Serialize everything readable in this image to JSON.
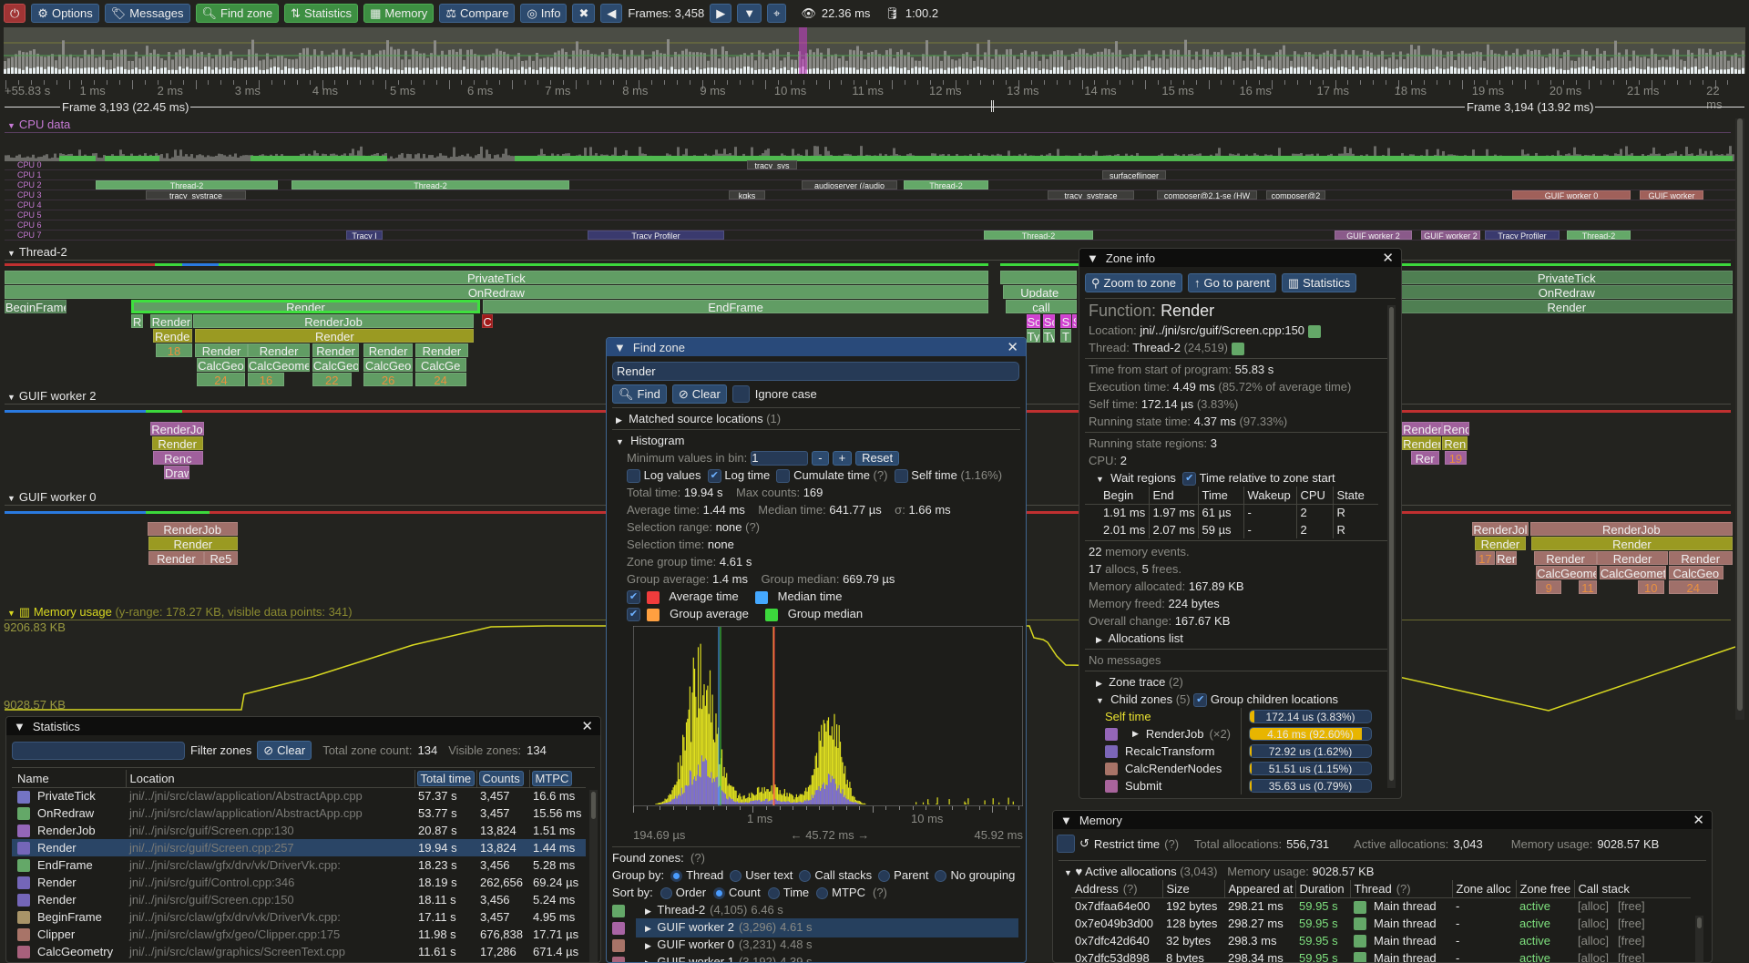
{
  "toolbar": {
    "options": "Options",
    "messages": "Messages",
    "find_zone": "Find zone",
    "statistics": "Statistics",
    "memory": "Memory",
    "compare": "Compare",
    "info": "Info",
    "frames": "Frames: 3,458",
    "frame_time": "22.36 ms",
    "trace_time": "1:00.2"
  },
  "ruler": {
    "start": "+55.83 s",
    "ticks": [
      "1 ms",
      "2 ms",
      "3 ms",
      "4 ms",
      "5 ms",
      "6 ms",
      "7 ms",
      "8 ms",
      "9 ms",
      "10 ms",
      "11 ms",
      "12 ms",
      "13 ms",
      "14 ms",
      "15 ms",
      "16 ms",
      "17 ms",
      "18 ms",
      "19 ms",
      "20 ms",
      "21 ms",
      "22 ms"
    ],
    "frame_a": "Frame 3,193 (22.45 ms)",
    "frame_b": "Frame 3,194 (13.92 ms)"
  },
  "cpu": {
    "title": "CPU data",
    "rows": [
      "CPU 0",
      "CPU 1",
      "CPU 2",
      "CPU 3",
      "CPU 4",
      "CPU 5",
      "CPU 6",
      "CPU 7"
    ],
    "blocks": [
      "Thread-2",
      "Thread-2",
      "Thread-2",
      "tracy_systrace",
      "tracy_systrace",
      "Thread-2",
      "Tracy Profiler",
      "Thread-2",
      "GUIF worker 2",
      "surfaceflinger",
      "composer@2.1-se (HW",
      "composer@2",
      "GUIF worker 0",
      "GUIF worker",
      "audioserver (/audio",
      "tracy_sys",
      "Tracy Profiler",
      "Tracy I",
      "kgks",
      "GUIF worker 2"
    ]
  },
  "threads": {
    "thread2": "Thread-2",
    "worker2": "GUIF worker 2",
    "worker0": "GUIF worker 0",
    "zones": [
      "PrivateTick",
      "OnRedraw",
      "BeginFrame",
      "Render",
      "EndFrame",
      "RenderJob",
      "Render",
      "C",
      "Rende",
      "Render",
      "18",
      "Render",
      "Render",
      "Render",
      "Render",
      "Render",
      "CalcGeo",
      "CalcGeome",
      "CalcGeor",
      "CalcGeo",
      "CalcGe",
      "24",
      "16",
      "22",
      "26",
      "24",
      "Update",
      "call",
      "PrivateTick",
      "OnRedraw",
      "Render",
      "RenderJol",
      "Render",
      "Renc",
      "Draw",
      "RenderJ",
      "Rend",
      "Render",
      "Ren",
      "Rer",
      "19",
      "RenderJob",
      "Render",
      "Render",
      "Re5",
      "RenderJol",
      "RenderJob",
      "Render",
      "Render",
      "17",
      "Rer",
      "Render",
      "Render",
      "Render",
      "CalcGeome",
      "CalcGeomet",
      "CalcGeo",
      "9",
      "11",
      "10",
      "24",
      "R",
      "Sc",
      "Sc",
      "S",
      "S",
      "Ty",
      "Ty",
      "T"
    ]
  },
  "memory_plot": {
    "title": "Memory usage",
    "subtitle": "(y-range: 178.27 KB, visible data points: 341)",
    "max_label": "9206.83 KB",
    "min_label": "9028.57 KB"
  },
  "statistics": {
    "title": "Statistics",
    "filter_placeholder": "",
    "filter_label": "Filter zones",
    "clear": "Clear",
    "total_label": "Total zone count:",
    "total": "134",
    "visible_label": "Visible zones:",
    "visible": "134",
    "columns": [
      "Name",
      "Location",
      "Total time",
      "Counts",
      "MTPC"
    ],
    "rows": [
      {
        "name": "PrivateTick",
        "color": "#7474c4",
        "loc": "jni/../jni/src/claw/application/AbstractApp.cpp",
        "total": "57.37 s",
        "count": "3,457",
        "mtpc": "16.6 ms"
      },
      {
        "name": "OnRedraw",
        "color": "#64a868",
        "loc": "jni/../jni/src/claw/application/AbstractApp.cpp",
        "total": "53.77 s",
        "count": "3,457",
        "mtpc": "15.56 ms"
      },
      {
        "name": "RenderJob",
        "color": "#9466b8",
        "loc": "jni/../jni/src/guif/Screen.cpp:130",
        "total": "20.87 s",
        "count": "13,824",
        "mtpc": "1.51 ms"
      },
      {
        "name": "Render",
        "color": "#7466b8",
        "loc": "jni/../jni/src/guif/Screen.cpp:257",
        "total": "19.94 s",
        "count": "13,824",
        "mtpc": "1.44 ms",
        "selected": true
      },
      {
        "name": "EndFrame",
        "color": "#64a868",
        "loc": "jni/../jni/src/claw/gfx/drv/vk/DriverVk.cpp:",
        "total": "18.23 s",
        "count": "3,456",
        "mtpc": "5.28 ms"
      },
      {
        "name": "Render",
        "color": "#7466b8",
        "loc": "jni/../jni/src/guif/Control.cpp:346",
        "total": "18.19 s",
        "count": "262,656",
        "mtpc": "69.24 µs"
      },
      {
        "name": "Render",
        "color": "#7466b8",
        "loc": "jni/../jni/src/guif/Screen.cpp:150",
        "total": "18.11 s",
        "count": "3,456",
        "mtpc": "5.24 ms"
      },
      {
        "name": "BeginFrame",
        "color": "#a89468",
        "loc": "jni/../jni/src/claw/gfx/drv/vk/DriverVk.cpp:",
        "total": "17.11 s",
        "count": "3,457",
        "mtpc": "4.95 ms"
      },
      {
        "name": "Clipper",
        "color": "#a87468",
        "loc": "jni/../jni/src/claw/gfx/geo/Clipper.cpp:175",
        "total": "11.98 s",
        "count": "676,838",
        "mtpc": "17.71 µs"
      },
      {
        "name": "CalcGeometry",
        "color": "#a8607c",
        "loc": "jni/../jni/src/claw/graphics/ScreenText.cpp",
        "total": "11.61 s",
        "count": "17,286",
        "mtpc": "671.4 µs"
      }
    ]
  },
  "find_zone": {
    "title": "Find zone",
    "query": "Render",
    "find": "Find",
    "clear": "Clear",
    "ignore_case": "Ignore case",
    "matched": "Matched source locations",
    "matched_count": "(1)",
    "histogram": "Histogram",
    "min_bin_label": "Minimum values in bin:",
    "min_bin": "1",
    "minus": "-",
    "plus": "+",
    "reset": "Reset",
    "log_values": "Log values",
    "log_time": "Log time",
    "cumulate": "Cumulate time",
    "q": "(?)",
    "self_time": "Self time",
    "self_pct": "(1.16%)",
    "total_time_label": "Total time:",
    "total_time": "19.94 s",
    "max_counts_label": "Max counts:",
    "max_counts": "169",
    "avg_label": "Average time:",
    "avg": "1.44 ms",
    "median_label": "Median time:",
    "median": "641.77 µs",
    "sigma_label": "σ:",
    "sigma": "1.66 ms",
    "sel_range_label": "Selection range:",
    "sel_range": "none",
    "sel_time_label": "Selection time:",
    "sel_time": "none",
    "group_time_label": "Zone group time:",
    "group_time": "4.61 s",
    "group_avg_label": "Group average:",
    "group_avg": "1.4 ms",
    "group_median_label": "Group median:",
    "group_median": "669.79 µs",
    "legend": {
      "avg": "Average time",
      "median": "Median time",
      "gavg": "Group average",
      "gmedian": "Group median"
    },
    "legend_colors": {
      "avg": "#f03c3c",
      "median": "#44a8ff",
      "gavg": "#ffa040",
      "gmedian": "#3cd83c"
    },
    "axis": {
      "t1": "1 ms",
      "t10": "10 ms",
      "min": "194.69 µs",
      "range": "← 45.72 ms →",
      "max": "45.92 ms"
    },
    "found_label": "Found zones:",
    "group_by_label": "Group by:",
    "group_by": [
      "Thread",
      "User text",
      "Call stacks",
      "Parent",
      "No grouping"
    ],
    "group_by_selected": "Thread",
    "sort_by_label": "Sort by:",
    "sort_by": [
      "Order",
      "Count",
      "Time",
      "MTPC"
    ],
    "sort_by_selected": "Count",
    "groups": [
      {
        "name": "Thread-2",
        "color": "#64a868",
        "count": "(4,105)",
        "time": "6.46 s"
      },
      {
        "name": "GUIF worker 2",
        "color": "#a864a4",
        "count": "(3,296)",
        "time": "4.61 s",
        "selected": true
      },
      {
        "name": "GUIF worker 0",
        "color": "#a87468",
        "count": "(3,231)",
        "time": "4.48 s"
      },
      {
        "name": "GUIF worker 1",
        "color": "#a8647c",
        "count": "(3,192)",
        "time": "4.39 s"
      }
    ]
  },
  "zone_info": {
    "title": "Zone info",
    "zoom": "Zoom to zone",
    "parent": "Go to parent",
    "stats": "Statistics",
    "function_label": "Function:",
    "function": "Render",
    "location_label": "Location:",
    "location": "jni/../jni/src/guif/Screen.cpp:150",
    "thread_label": "Thread:",
    "thread": "Thread-2",
    "thread_id": "(24,519)",
    "start_label": "Time from start of program:",
    "start": "55.83 s",
    "exec_label": "Execution time:",
    "exec": "4.49 ms",
    "exec_note": "(85.72% of average time)",
    "self_label": "Self time:",
    "self": "172.14 µs",
    "self_note": "(3.83%)",
    "running_label": "Running state time:",
    "running": "4.37 ms",
    "running_note": "(97.33%)",
    "regions_label": "Running state regions:",
    "regions": "3",
    "cpu_label": "CPU:",
    "cpu": "2",
    "wait_regions": "Wait regions",
    "relative": "Time relative to zone start",
    "wait_cols": [
      "Begin",
      "End",
      "Time",
      "Wakeup",
      "CPU",
      "State"
    ],
    "wait_rows": [
      [
        "1.91 ms",
        "1.97 ms",
        "61 µs",
        "-",
        "2",
        "R"
      ],
      [
        "2.01 ms",
        "2.07 ms",
        "59 µs",
        "-",
        "2",
        "R"
      ]
    ],
    "mem_events": "22",
    "mem_events_label": "memory events.",
    "allocs": "17",
    "allocs_label": "allocs,",
    "frees": "5",
    "frees_label": "frees.",
    "allocated_label": "Memory allocated:",
    "allocated": "167.89 KB",
    "freed_label": "Memory freed:",
    "freed": "224 bytes",
    "change_label": "Overall change:",
    "change": "167.67 KB",
    "alloc_list": "Allocations list",
    "no_messages": "No messages",
    "zone_trace": "Zone trace",
    "zone_trace_count": "(2)",
    "child_zones": "Child zones",
    "child_count": "(5)",
    "group_children": "Group children locations",
    "children": [
      {
        "name": "Self time",
        "value": "172.14 us (3.83%)",
        "pct": 3.83,
        "self": true
      },
      {
        "name": "RenderJob",
        "extra": "(×2)",
        "color": "#9466b8",
        "value": "4.16 ms (92.60%)",
        "pct": 92.6
      },
      {
        "name": "RecalcTransform",
        "color": "#7c66b8",
        "value": "72.92 us (1.62%)",
        "pct": 1.62
      },
      {
        "name": "CalcRenderNodes",
        "color": "#a87468",
        "value": "51.51 us (1.15%)",
        "pct": 1.15
      },
      {
        "name": "Submit",
        "color": "#a8649c",
        "value": "35.63 us (0.79%)",
        "pct": 0.79
      }
    ]
  },
  "memory": {
    "title": "Memory",
    "restrict": "Restrict time",
    "q": "(?)",
    "total_label": "Total allocations:",
    "total": "556,731",
    "active_label": "Active allocations:",
    "active": "3,043",
    "usage_label": "Memory usage:",
    "usage": "9028.57 KB",
    "active_section": "Active allocations",
    "active_count": "(3,043)",
    "columns": [
      "Address",
      "Size",
      "Appeared at",
      "Duration",
      "Thread",
      "Zone alloc",
      "Zone free",
      "Call stack"
    ],
    "rows": [
      {
        "addr": "0x7dfaa64e00",
        "size": "192 bytes",
        "at": "298.21 ms",
        "dur": "59.95 s",
        "thread": "Main thread",
        "za": "-",
        "zf": "active",
        "cs1": "[alloc]",
        "cs2": "[free]"
      },
      {
        "addr": "0x7e049b3d00",
        "size": "128 bytes",
        "at": "298.27 ms",
        "dur": "59.95 s",
        "thread": "Main thread",
        "za": "-",
        "zf": "active",
        "cs1": "[alloc]",
        "cs2": "[free]"
      },
      {
        "addr": "0x7dfc42d640",
        "size": "32 bytes",
        "at": "298.3 ms",
        "dur": "59.95 s",
        "thread": "Main thread",
        "za": "-",
        "zf": "active",
        "cs1": "[alloc]",
        "cs2": "[free]"
      },
      {
        "addr": "0x7dfc53d898",
        "size": "8 bytes",
        "at": "298.34 ms",
        "dur": "59.95 s",
        "thread": "Main thread",
        "za": "-",
        "zf": "active",
        "cs1": "[alloc]",
        "cs2": "[free]"
      }
    ]
  }
}
